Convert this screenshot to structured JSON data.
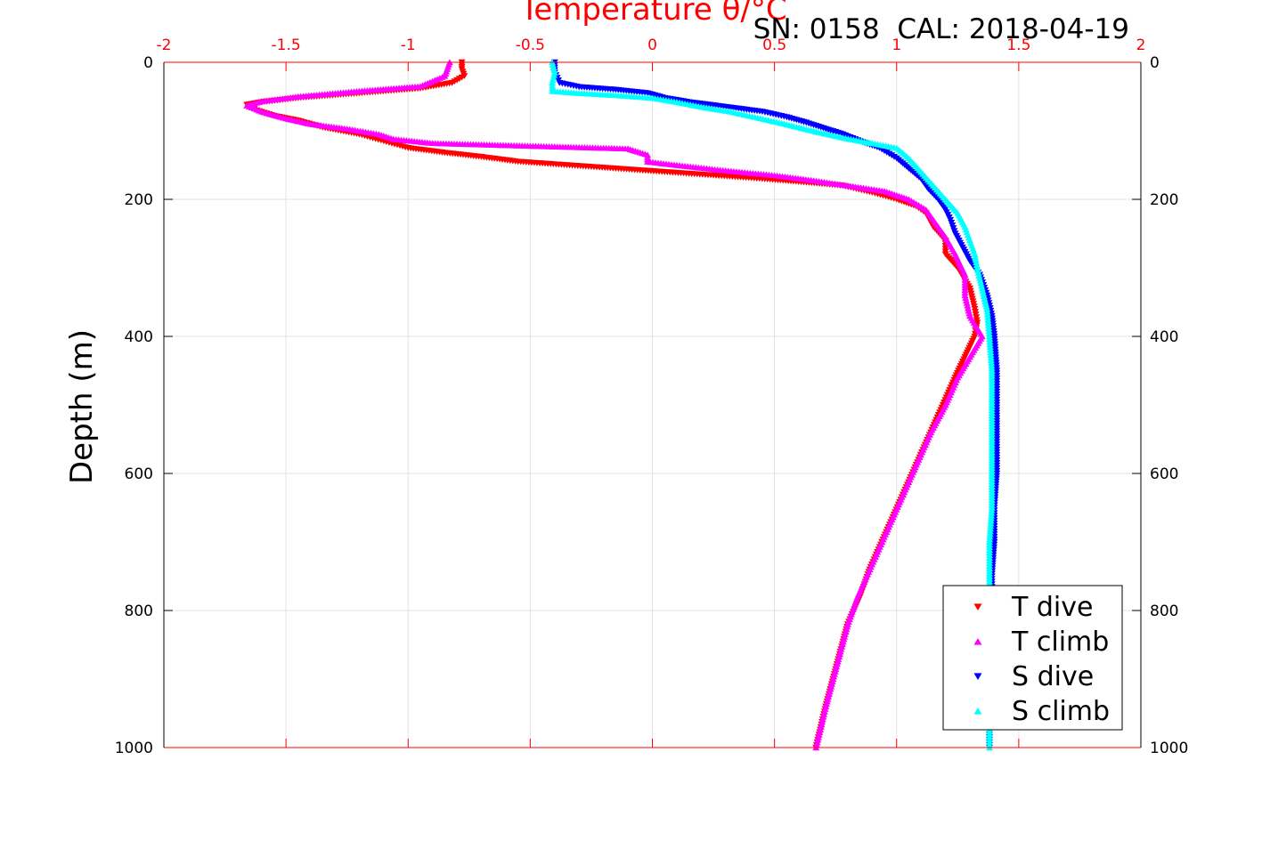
{
  "header": {
    "top_axis_title": "Temperature θ/°C",
    "annotation": "SN: 0158  CAL: 2018-04-19"
  },
  "chart_data": {
    "type": "scatter",
    "title": "",
    "annotation": "SN: 0158  CAL: 2018-04-19",
    "xlabel": "Temperature θ/°C",
    "ylabel": "Depth (m)",
    "xlim": [
      -2,
      2
    ],
    "ylim": [
      0,
      1000
    ],
    "y_reversed": true,
    "x_ticks": [
      "-2",
      "-1.5",
      "-1",
      "-0.5",
      "0",
      "0.5",
      "1",
      "1.5",
      "2"
    ],
    "y_ticks": [
      "0",
      "200",
      "400",
      "600",
      "800",
      "1000"
    ],
    "grid": true,
    "legend_position": "bottom-right",
    "colors": {
      "top_axis": "#ff0000"
    },
    "series": [
      {
        "name": "T dive",
        "color": "#ff0000",
        "marker": "triangle-down",
        "points": [
          [
            -0.78,
            0
          ],
          [
            -0.78,
            10
          ],
          [
            -0.77,
            20
          ],
          [
            -0.82,
            30
          ],
          [
            -0.95,
            38
          ],
          [
            -1.2,
            45
          ],
          [
            -1.45,
            52
          ],
          [
            -1.6,
            58
          ],
          [
            -1.66,
            62
          ],
          [
            -1.62,
            70
          ],
          [
            -1.55,
            78
          ],
          [
            -1.45,
            85
          ],
          [
            -1.35,
            95
          ],
          [
            -1.2,
            105
          ],
          [
            -1.1,
            115
          ],
          [
            -1.0,
            125
          ],
          [
            -0.85,
            132
          ],
          [
            -0.7,
            138
          ],
          [
            -0.55,
            145
          ],
          [
            -0.35,
            150
          ],
          [
            -0.15,
            155
          ],
          [
            0.05,
            160
          ],
          [
            0.25,
            165
          ],
          [
            0.45,
            170
          ],
          [
            0.62,
            175
          ],
          [
            0.78,
            180
          ],
          [
            0.9,
            190
          ],
          [
            1.0,
            200
          ],
          [
            1.08,
            210
          ],
          [
            1.12,
            220
          ],
          [
            1.15,
            240
          ],
          [
            1.2,
            260
          ],
          [
            1.2,
            280
          ],
          [
            1.25,
            300
          ],
          [
            1.3,
            330
          ],
          [
            1.32,
            360
          ],
          [
            1.33,
            380
          ],
          [
            1.32,
            400
          ],
          [
            1.28,
            430
          ],
          [
            1.24,
            460
          ],
          [
            1.19,
            500
          ],
          [
            1.14,
            540
          ],
          [
            1.09,
            580
          ],
          [
            1.04,
            620
          ],
          [
            0.99,
            660
          ],
          [
            0.94,
            700
          ],
          [
            0.89,
            740
          ],
          [
            0.85,
            780
          ],
          [
            0.8,
            820
          ],
          [
            0.77,
            860
          ],
          [
            0.74,
            900
          ],
          [
            0.71,
            940
          ],
          [
            0.69,
            970
          ],
          [
            0.67,
            1000
          ]
        ]
      },
      {
        "name": "T climb",
        "color": "#ff00ff",
        "marker": "triangle-up",
        "points": [
          [
            -0.83,
            0
          ],
          [
            -0.84,
            10
          ],
          [
            -0.85,
            20
          ],
          [
            -0.95,
            35
          ],
          [
            -1.2,
            42
          ],
          [
            -1.45,
            50
          ],
          [
            -1.6,
            57
          ],
          [
            -1.66,
            63
          ],
          [
            -1.6,
            72
          ],
          [
            -1.5,
            82
          ],
          [
            -1.4,
            90
          ],
          [
            -1.25,
            97
          ],
          [
            -1.12,
            105
          ],
          [
            -1.06,
            112
          ],
          [
            -0.9,
            118
          ],
          [
            -0.7,
            120
          ],
          [
            -0.5,
            122
          ],
          [
            -0.3,
            124
          ],
          [
            -0.1,
            126
          ],
          [
            -0.02,
            135
          ],
          [
            -0.02,
            145
          ],
          [
            0.1,
            150
          ],
          [
            0.3,
            158
          ],
          [
            0.5,
            165
          ],
          [
            0.65,
            172
          ],
          [
            0.8,
            180
          ],
          [
            0.95,
            188
          ],
          [
            1.05,
            200
          ],
          [
            1.12,
            215
          ],
          [
            1.16,
            235
          ],
          [
            1.2,
            255
          ],
          [
            1.24,
            280
          ],
          [
            1.28,
            310
          ],
          [
            1.28,
            340
          ],
          [
            1.3,
            370
          ],
          [
            1.35,
            400
          ],
          [
            1.3,
            430
          ],
          [
            1.25,
            460
          ],
          [
            1.2,
            500
          ],
          [
            1.14,
            540
          ],
          [
            1.09,
            580
          ],
          [
            1.04,
            620
          ],
          [
            0.99,
            660
          ],
          [
            0.94,
            700
          ],
          [
            0.89,
            740
          ],
          [
            0.84,
            780
          ],
          [
            0.8,
            820
          ],
          [
            0.77,
            860
          ],
          [
            0.74,
            900
          ],
          [
            0.71,
            940
          ],
          [
            0.69,
            970
          ],
          [
            0.67,
            1000
          ]
        ]
      },
      {
        "name": "S dive",
        "color": "#0000ff",
        "marker": "triangle-down",
        "points": [
          [
            -0.4,
            0
          ],
          [
            -0.4,
            15
          ],
          [
            -0.38,
            30
          ],
          [
            -0.3,
            36
          ],
          [
            -0.15,
            40
          ],
          [
            -0.02,
            45
          ],
          [
            0.05,
            52
          ],
          [
            0.15,
            58
          ],
          [
            0.3,
            65
          ],
          [
            0.45,
            72
          ],
          [
            0.55,
            80
          ],
          [
            0.63,
            88
          ],
          [
            0.7,
            96
          ],
          [
            0.78,
            105
          ],
          [
            0.85,
            115
          ],
          [
            0.93,
            125
          ],
          [
            1.0,
            140
          ],
          [
            1.05,
            155
          ],
          [
            1.1,
            170
          ],
          [
            1.13,
            185
          ],
          [
            1.17,
            200
          ],
          [
            1.2,
            215
          ],
          [
            1.22,
            230
          ],
          [
            1.24,
            250
          ],
          [
            1.27,
            270
          ],
          [
            1.3,
            290
          ],
          [
            1.34,
            310
          ],
          [
            1.37,
            340
          ],
          [
            1.39,
            370
          ],
          [
            1.4,
            400
          ],
          [
            1.41,
            450
          ],
          [
            1.41,
            500
          ],
          [
            1.41,
            550
          ],
          [
            1.41,
            600
          ],
          [
            1.4,
            650
          ],
          [
            1.4,
            700
          ],
          [
            1.39,
            750
          ],
          [
            1.39,
            800
          ],
          [
            1.38,
            850
          ],
          [
            1.38,
            900
          ],
          [
            1.38,
            950
          ],
          [
            1.38,
            1000
          ]
        ]
      },
      {
        "name": "S climb",
        "color": "#00ffff",
        "marker": "triangle-up",
        "points": [
          [
            -0.41,
            0
          ],
          [
            -0.4,
            15
          ],
          [
            -0.41,
            30
          ],
          [
            -0.41,
            42
          ],
          [
            -0.3,
            45
          ],
          [
            -0.15,
            48
          ],
          [
            0.0,
            52
          ],
          [
            0.1,
            58
          ],
          [
            0.2,
            65
          ],
          [
            0.32,
            72
          ],
          [
            0.42,
            80
          ],
          [
            0.52,
            88
          ],
          [
            0.6,
            95
          ],
          [
            0.68,
            102
          ],
          [
            0.78,
            110
          ],
          [
            0.9,
            118
          ],
          [
            1.0,
            125
          ],
          [
            1.05,
            140
          ],
          [
            1.1,
            160
          ],
          [
            1.15,
            180
          ],
          [
            1.2,
            200
          ],
          [
            1.25,
            220
          ],
          [
            1.28,
            240
          ],
          [
            1.3,
            260
          ],
          [
            1.32,
            280
          ],
          [
            1.33,
            300
          ],
          [
            1.35,
            330
          ],
          [
            1.37,
            360
          ],
          [
            1.38,
            400
          ],
          [
            1.39,
            450
          ],
          [
            1.39,
            500
          ],
          [
            1.39,
            550
          ],
          [
            1.39,
            600
          ],
          [
            1.39,
            650
          ],
          [
            1.38,
            700
          ],
          [
            1.38,
            750
          ],
          [
            1.38,
            800
          ],
          [
            1.38,
            850
          ],
          [
            1.38,
            900
          ],
          [
            1.38,
            950
          ],
          [
            1.38,
            1000
          ]
        ]
      }
    ]
  }
}
